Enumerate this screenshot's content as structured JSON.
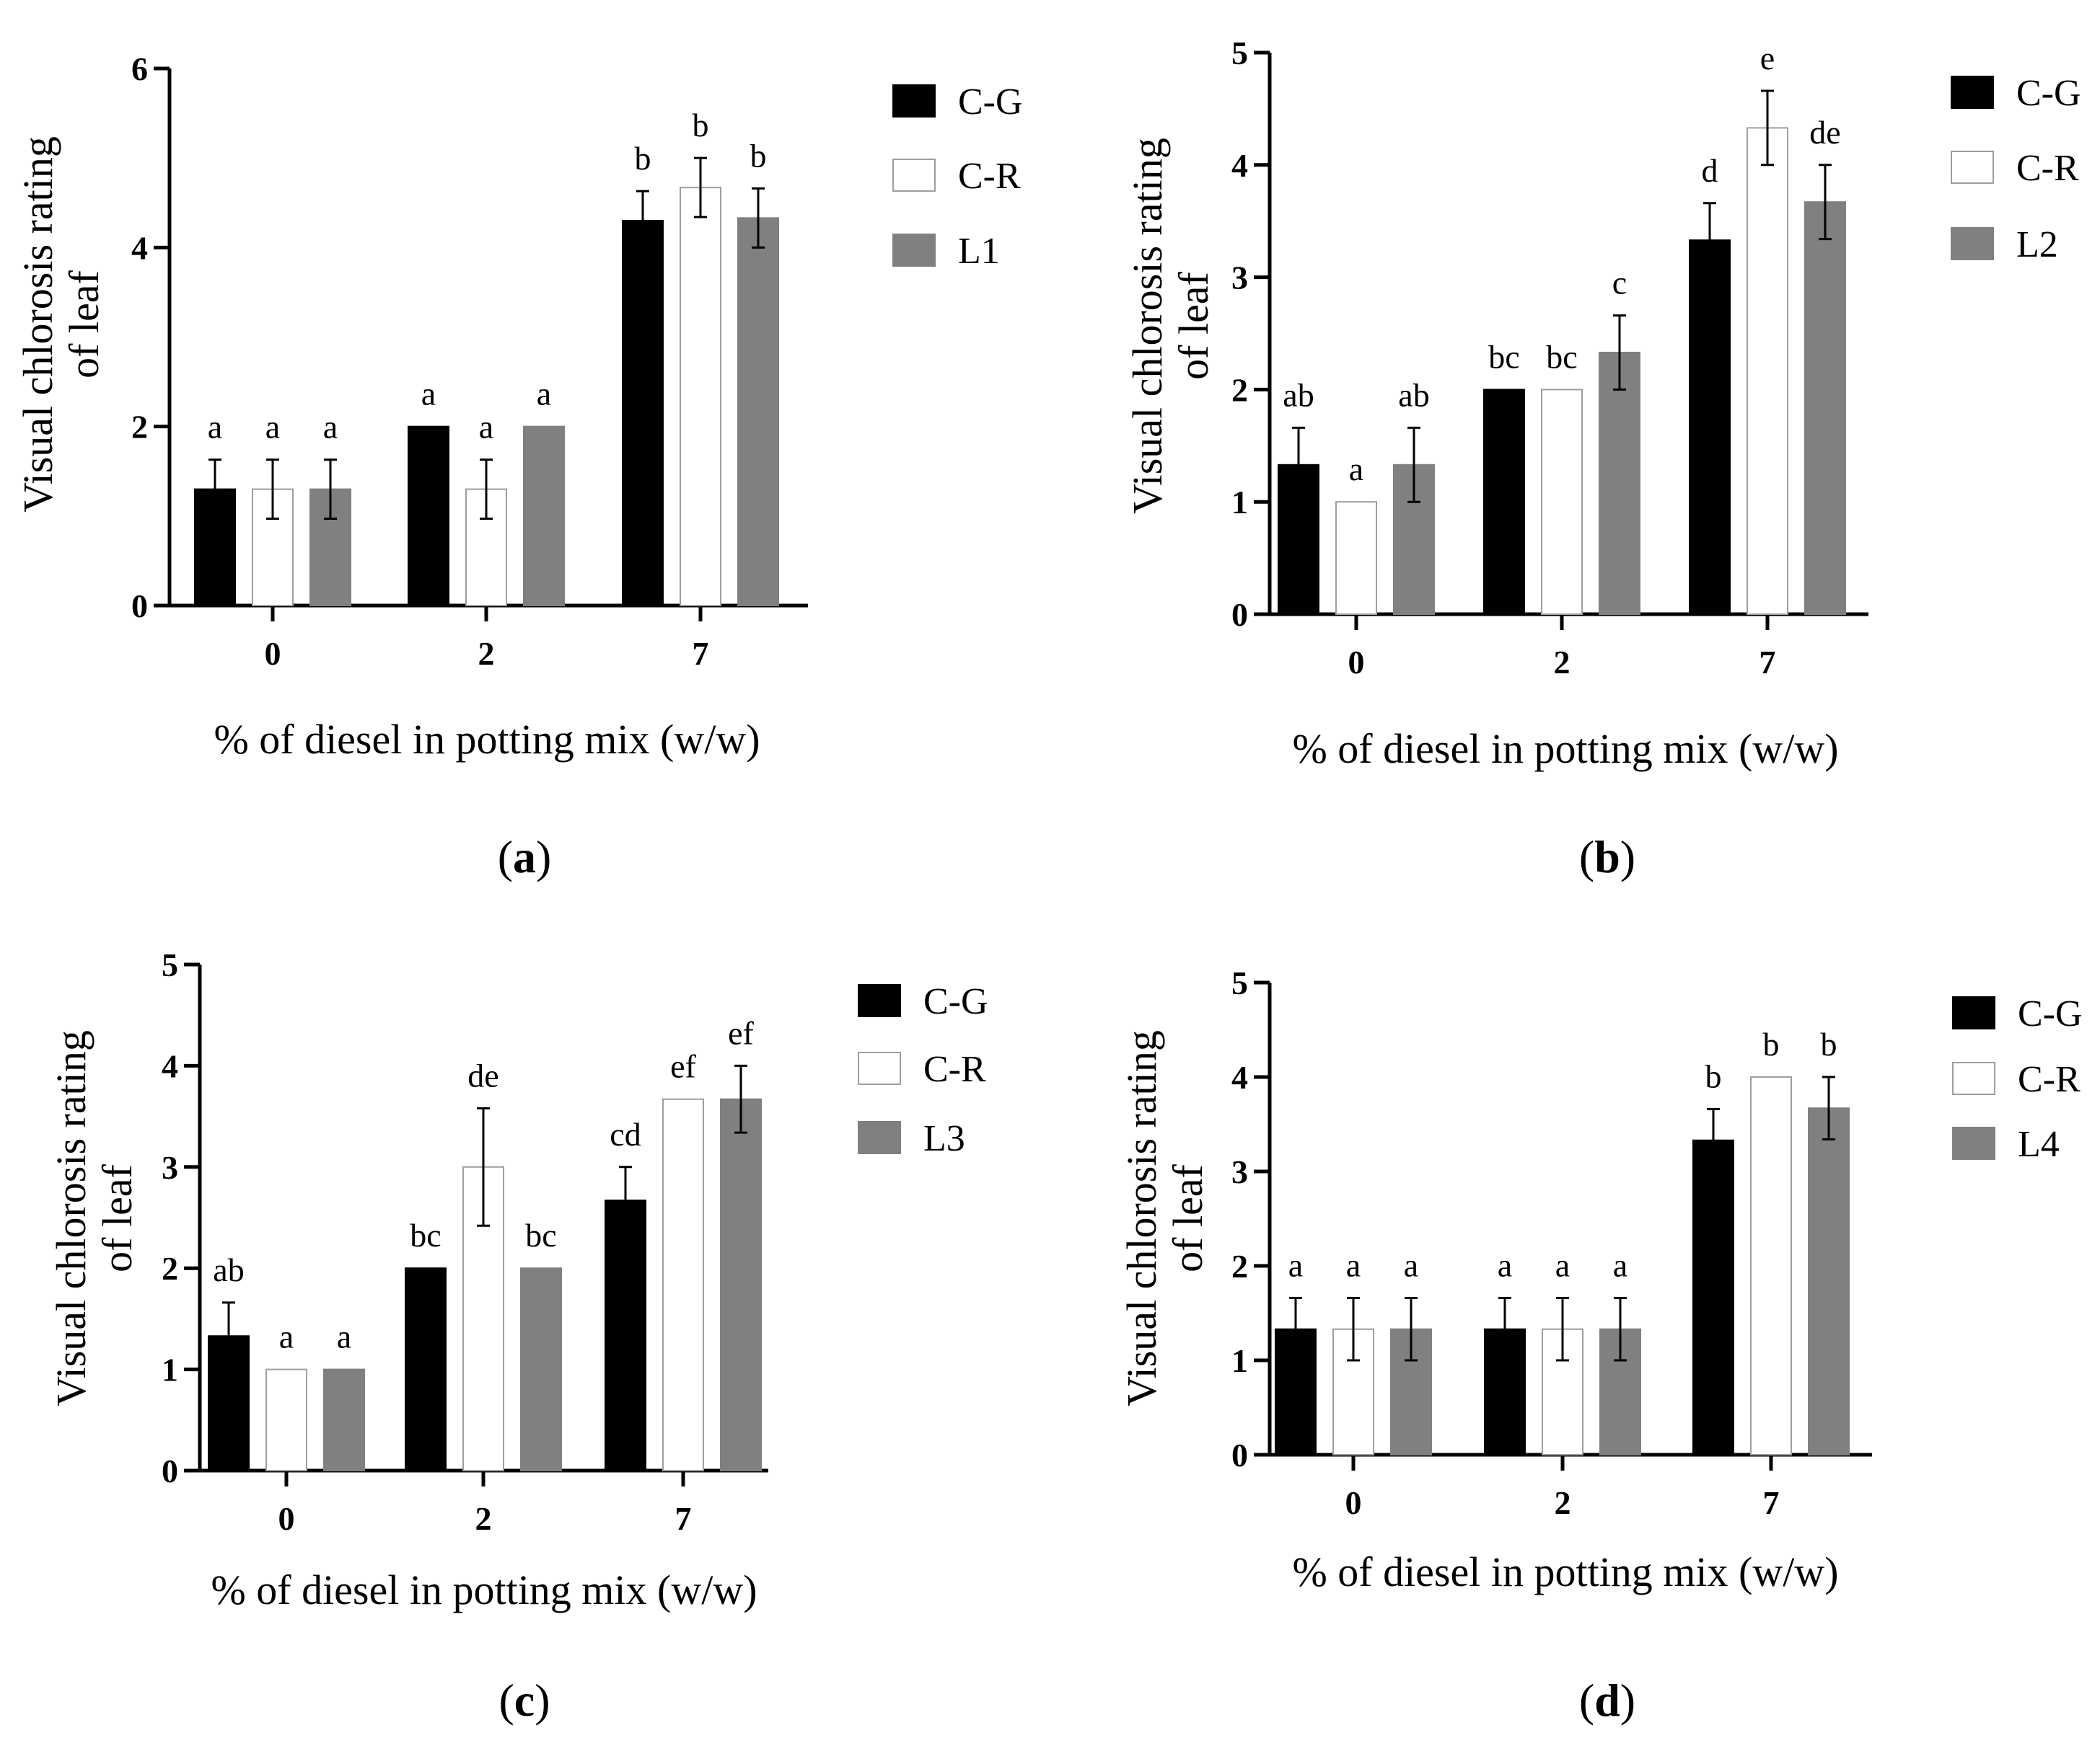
{
  "figure": {
    "series_styles": [
      {
        "name": "C-G",
        "fill": "#000000",
        "stroke": "#000000"
      },
      {
        "name": "C-R",
        "fill": "#ffffff",
        "stroke": "#9e9e9e"
      },
      {
        "name": "L",
        "fill": "#808080",
        "stroke": "#808080"
      }
    ]
  },
  "chart_data": [
    {
      "type": "bar",
      "panel": "(a)",
      "panel_open": "(",
      "panel_letter": "a",
      "panel_close": ")",
      "xlabel": "% of diesel in potting mix (w/w)",
      "ylabel_line1": "Visual chlorosis rating",
      "ylabel_line2": "of leaf",
      "ylim": [
        0,
        6
      ],
      "yticks": [
        "0",
        "2",
        "4",
        "6"
      ],
      "ytick_values": [
        0,
        2,
        4,
        6
      ],
      "categories": [
        "0",
        "2",
        "7"
      ],
      "series": [
        {
          "name": "C-G",
          "values": [
            1.3,
            2.0,
            4.3
          ],
          "errors": [
            0.33,
            0,
            0.33
          ],
          "labels": [
            "a",
            "a",
            "b"
          ]
        },
        {
          "name": "C-R",
          "values": [
            1.3,
            1.3,
            4.67
          ],
          "errors": [
            0.33,
            0.33,
            0.33
          ],
          "labels": [
            "a",
            "a",
            "b"
          ]
        },
        {
          "name": "L1",
          "values": [
            1.3,
            2.0,
            4.33
          ],
          "errors": [
            0.33,
            0,
            0.33
          ],
          "labels": [
            "a",
            "a",
            "b"
          ]
        }
      ]
    },
    {
      "type": "bar",
      "panel": "(b)",
      "panel_open": "(",
      "panel_letter": "b",
      "panel_close": ")",
      "xlabel": "% of diesel in potting mix (w/w)",
      "ylabel_line1": "Visual chlorosis rating",
      "ylabel_line2": "of leaf",
      "ylim": [
        0,
        5
      ],
      "yticks": [
        "0",
        "1",
        "2",
        "3",
        "4",
        "5"
      ],
      "ytick_values": [
        0,
        1,
        2,
        3,
        4,
        5
      ],
      "categories": [
        "0",
        "2",
        "7"
      ],
      "series": [
        {
          "name": "C-G",
          "values": [
            1.33,
            2.0,
            3.33
          ],
          "errors": [
            0.33,
            0,
            0.33
          ],
          "labels": [
            "ab",
            "bc",
            "d"
          ]
        },
        {
          "name": "C-R",
          "values": [
            1.0,
            2.0,
            4.33
          ],
          "errors": [
            0,
            0,
            0.33
          ],
          "labels": [
            "a",
            "bc",
            "e"
          ]
        },
        {
          "name": "L2",
          "values": [
            1.33,
            2.33,
            3.67
          ],
          "errors": [
            0.33,
            0.33,
            0.33
          ],
          "labels": [
            "ab",
            "c",
            "de"
          ]
        }
      ]
    },
    {
      "type": "bar",
      "panel": "(c)",
      "panel_open": "(",
      "panel_letter": "c",
      "panel_close": ")",
      "xlabel": "% of diesel in potting mix (w/w)",
      "ylabel_line1": "Visual chlorosis rating",
      "ylabel_line2": "of leaf",
      "ylim": [
        0,
        5
      ],
      "yticks": [
        "0",
        "1",
        "2",
        "3",
        "4",
        "5"
      ],
      "ytick_values": [
        0,
        1,
        2,
        3,
        4,
        5
      ],
      "categories": [
        "0",
        "2",
        "7"
      ],
      "series": [
        {
          "name": "C-G",
          "values": [
            1.33,
            2.0,
            2.67
          ],
          "errors": [
            0.33,
            0,
            0.33
          ],
          "labels": [
            "ab",
            "bc",
            "cd"
          ]
        },
        {
          "name": "C-R",
          "values": [
            1.0,
            3.0,
            3.67
          ],
          "errors": [
            0,
            0.58,
            0
          ],
          "labels": [
            "a",
            "de",
            "ef"
          ]
        },
        {
          "name": "L3",
          "values": [
            1.0,
            2.0,
            3.67
          ],
          "errors": [
            0,
            0,
            0.33
          ],
          "labels": [
            "a",
            "bc",
            "ef"
          ]
        }
      ]
    },
    {
      "type": "bar",
      "panel": "(d)",
      "panel_open": "(",
      "panel_letter": "d",
      "panel_close": ")",
      "xlabel": "% of diesel in potting mix (w/w)",
      "ylabel_line1": "Visual chlorosis rating",
      "ylabel_line2": "of leaf",
      "ylim": [
        0,
        5
      ],
      "yticks": [
        "0",
        "1",
        "2",
        "3",
        "4",
        "5"
      ],
      "ytick_values": [
        0,
        1,
        2,
        3,
        4,
        5
      ],
      "categories": [
        "0",
        "2",
        "7"
      ],
      "series": [
        {
          "name": "C-G",
          "values": [
            1.33,
            1.33,
            3.33
          ],
          "errors": [
            0.33,
            0.33,
            0.33
          ],
          "labels": [
            "a",
            "a",
            "b"
          ]
        },
        {
          "name": "C-R",
          "values": [
            1.33,
            1.33,
            4.0
          ],
          "errors": [
            0.33,
            0.33,
            0
          ],
          "labels": [
            "a",
            "a",
            "b"
          ]
        },
        {
          "name": "L4",
          "values": [
            1.33,
            1.33,
            3.67
          ],
          "errors": [
            0.33,
            0.33,
            0.33
          ],
          "labels": [
            "a",
            "a",
            "b"
          ]
        }
      ]
    }
  ]
}
